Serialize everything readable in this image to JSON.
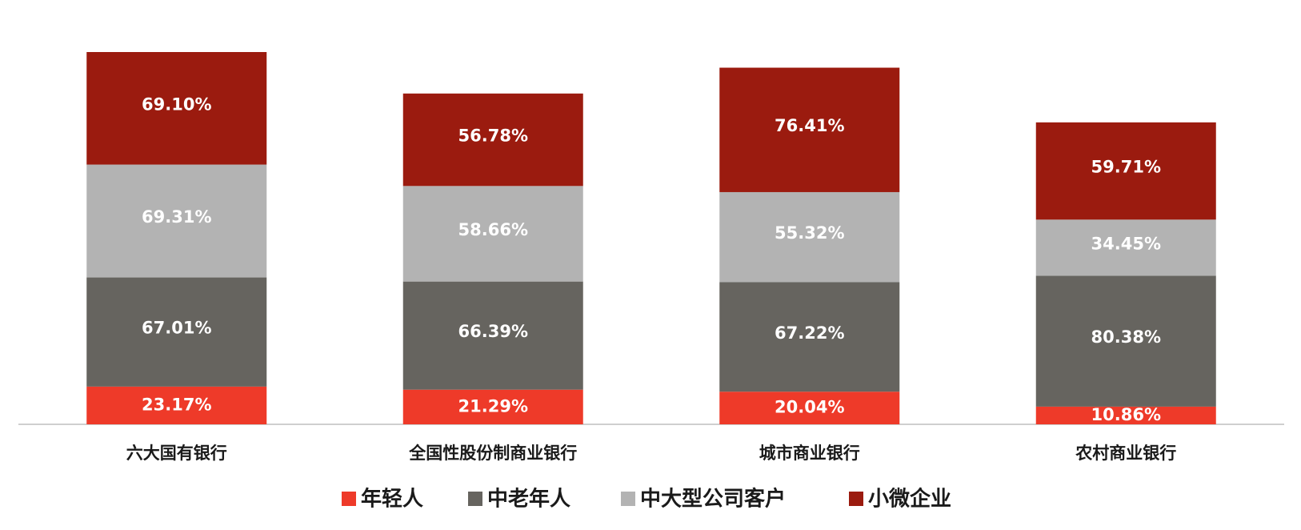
{
  "chart_data": {
    "type": "stacked_bar",
    "categories": [
      "六大国有银行",
      "全国性股份制商业银行",
      "城市商业银行",
      "农村商业银行"
    ],
    "series": [
      {
        "name": "年轻人",
        "color": "#ee3a29",
        "values": [
          23.17,
          21.29,
          20.04,
          10.86
        ],
        "value_labels": [
          "23.17%",
          "21.29%",
          "20.04%",
          "10.86%"
        ]
      },
      {
        "name": "中老年人",
        "color": "#66645f",
        "values": [
          67.01,
          66.39,
          67.22,
          80.38
        ],
        "value_labels": [
          "67.01%",
          "66.39%",
          "67.22%",
          "80.38%"
        ]
      },
      {
        "name": "中大型公司客户",
        "color": "#b3b3b3",
        "values": [
          69.31,
          58.66,
          55.32,
          34.45
        ],
        "value_labels": [
          "69.31%",
          "58.66%",
          "55.32%",
          "34.45%"
        ]
      },
      {
        "name": "小微企业",
        "color": "#9b1b0f",
        "values": [
          69.1,
          56.78,
          76.41,
          59.71
        ],
        "value_labels": [
          "69.10%",
          "56.78%",
          "76.41%",
          "59.71%"
        ]
      }
    ]
  }
}
